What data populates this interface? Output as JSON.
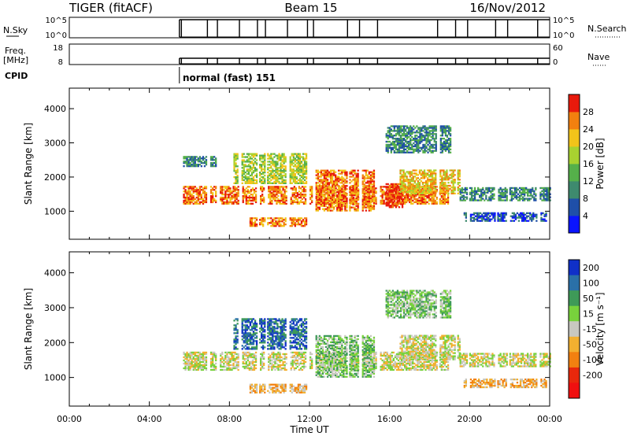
{
  "header": {
    "station": "TIGER (fitACF)",
    "beam": "Beam 15",
    "date": "16/Nov/2012"
  },
  "status_panels": {
    "nsky_label": "N.Sky",
    "nsky_ticks": [
      "10^5",
      "10^0"
    ],
    "nsearch_label": "N.Search",
    "nsearch_ticks": [
      "10^5",
      "10^0"
    ],
    "freq_label_1": "Freq.",
    "freq_label_2": "[MHz]",
    "freq_ticks": [
      "18",
      "8"
    ],
    "nave_label": "Nave",
    "nave_ticks": [
      "60",
      "0"
    ],
    "cpid_label": "CPID",
    "cpid_text": "normal (fast) 151",
    "operation_start_hour": 5.5,
    "operation_end_hour": 24,
    "data_gap_hours": [
      5.6,
      6.9,
      7.4,
      8.5,
      9.4,
      9.8,
      10.9,
      11.9,
      12.2,
      13.9,
      14.5,
      15.4,
      18.4,
      19.3,
      19.9,
      21.3,
      21.9,
      23.4
    ]
  },
  "chart_data": [
    {
      "type": "heatmap",
      "name": "power",
      "ylabel": "Slant Range [km]",
      "xlabel": "",
      "ylim": [
        180,
        4600
      ],
      "xlim": [
        0,
        24
      ],
      "y_ticks": [
        1000,
        2000,
        3000,
        4000
      ],
      "y_tick_labels": [
        "1000",
        "2000",
        "3000",
        "4000"
      ],
      "colorbar": {
        "label": "Power [dB]",
        "ticks": [
          "4",
          "8",
          "12",
          "16",
          "20",
          "24",
          "28"
        ],
        "colors": [
          "#0a14ff",
          "#1f4fa8",
          "#3e8a6e",
          "#55b04a",
          "#a8d230",
          "#f2c41a",
          "#f2800f",
          "#e81a0c"
        ]
      },
      "echo_regions": [
        {
          "t0": 5.6,
          "t1": 18.9,
          "r0": 1200,
          "r1": 1700,
          "level": 6
        },
        {
          "t0": 9.0,
          "t1": 12.0,
          "r0": 550,
          "r1": 800,
          "level": 6
        },
        {
          "t0": 12.3,
          "t1": 15.2,
          "r0": 1000,
          "r1": 2200,
          "level": 6
        },
        {
          "t0": 15.8,
          "t1": 16.6,
          "r0": 1100,
          "r1": 1800,
          "level": 7
        },
        {
          "t0": 16.5,
          "t1": 19.5,
          "r0": 1500,
          "r1": 2200,
          "level": 5
        },
        {
          "t0": 5.6,
          "t1": 7.5,
          "r0": 2300,
          "r1": 2600,
          "level": 2
        },
        {
          "t0": 8.2,
          "t1": 12.0,
          "r0": 1800,
          "r1": 2700,
          "level": 4
        },
        {
          "t0": 15.8,
          "t1": 19.0,
          "r0": 2700,
          "r1": 3500,
          "level": 2
        },
        {
          "t0": 19.5,
          "t1": 24.0,
          "r0": 1300,
          "r1": 1700,
          "level": 2
        },
        {
          "t0": 19.7,
          "t1": 23.8,
          "r0": 700,
          "r1": 950,
          "level": 1
        }
      ]
    },
    {
      "type": "heatmap",
      "name": "velocity",
      "ylabel": "Slant Range [km]",
      "xlabel": "Time UT",
      "ylim": [
        180,
        4600
      ],
      "xlim": [
        0,
        24
      ],
      "x_ticks": [
        0,
        4,
        8,
        12,
        16,
        20,
        24
      ],
      "x_tick_labels": [
        "00:00",
        "04:00",
        "08:00",
        "12:00",
        "16:00",
        "20:00",
        "00:00"
      ],
      "y_ticks": [
        1000,
        2000,
        3000,
        4000
      ],
      "y_tick_labels": [
        "1000",
        "2000",
        "3000",
        "4000"
      ],
      "colorbar": {
        "label": "Velocity [m s⁻¹]",
        "ticks": [
          "200",
          "100",
          "50",
          "15",
          "-15",
          "-50",
          "-100",
          "-200"
        ],
        "colors": [
          "#1030c8",
          "#2a70a8",
          "#3e9a58",
          "#78d23c",
          "#c8c8c0",
          "#f2b030",
          "#f28010",
          "#e8280c",
          "#f01010"
        ]
      },
      "echo_regions": [
        {
          "t0": 5.6,
          "t1": 18.9,
          "r0": 1200,
          "r1": 1700,
          "level": 4
        },
        {
          "t0": 9.0,
          "t1": 12.0,
          "r0": 550,
          "r1": 800,
          "level": 5
        },
        {
          "t0": 12.3,
          "t1": 15.2,
          "r0": 1000,
          "r1": 2200,
          "level": 3
        },
        {
          "t0": 16.5,
          "t1": 19.5,
          "r0": 1500,
          "r1": 2200,
          "level": 4
        },
        {
          "t0": 8.2,
          "t1": 12.0,
          "r0": 1800,
          "r1": 2700,
          "level": 1
        },
        {
          "t0": 15.8,
          "t1": 19.0,
          "r0": 2700,
          "r1": 3500,
          "level": 3
        },
        {
          "t0": 19.5,
          "t1": 24.0,
          "r0": 1300,
          "r1": 1700,
          "level": 4
        },
        {
          "t0": 19.7,
          "t1": 23.8,
          "r0": 700,
          "r1": 950,
          "level": 5
        }
      ]
    }
  ]
}
